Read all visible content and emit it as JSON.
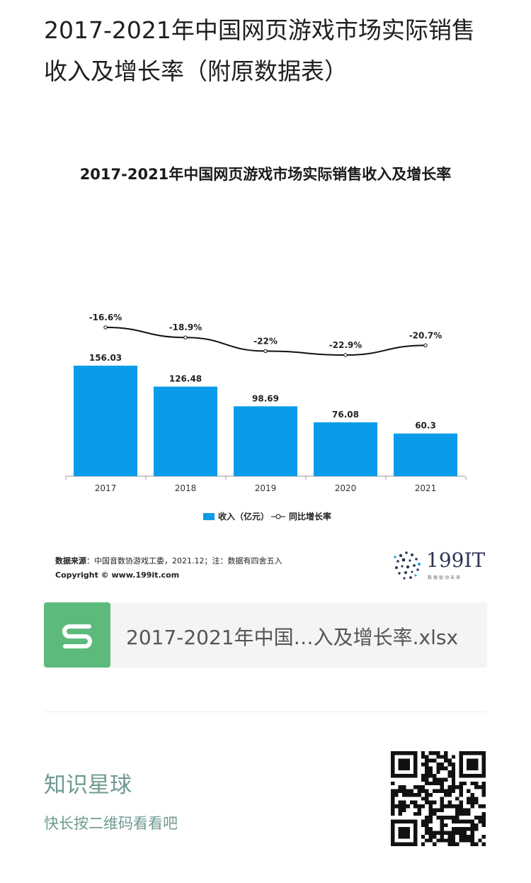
{
  "article": {
    "title": "2017-2021年中国网页游戏市场实际销售收入及增长率（附原数据表）"
  },
  "chart_data": {
    "type": "bar",
    "title": "2017-2021年中国网页游戏市场实际销售收入及增长率",
    "categories": [
      "2017",
      "2018",
      "2019",
      "2020",
      "2021"
    ],
    "series": [
      {
        "name": "收入（亿元）",
        "type": "bar",
        "values": [
          156.03,
          126.48,
          98.69,
          76.08,
          60.3
        ]
      },
      {
        "name": "同比增长率",
        "type": "line",
        "values": [
          -16.6,
          -18.9,
          -22,
          -22.9,
          -20.7
        ],
        "labels": [
          "-16.6%",
          "-18.9%",
          "-22%",
          "-22.9%",
          "-20.7%"
        ]
      }
    ],
    "bar_labels": [
      "156.03",
      "126.48",
      "98.69",
      "76.08",
      "60.3"
    ],
    "legend_position": "bottom-center",
    "grid": false,
    "colors": {
      "bar": "#0a9ce8",
      "line": "#111111"
    }
  },
  "source": {
    "label": "数据来源",
    "text": "：中国音数协游戏工委，2021.12；注：数据有四舍五入",
    "copyright": "Copyright ©  www.199it.com"
  },
  "brand": {
    "name": "199IT",
    "tagline": "数据驱动未来"
  },
  "file": {
    "name": "2017-2021年中国…入及增长率.xlsx",
    "icon": "spreadsheet-s-icon"
  },
  "promo": {
    "title": "知识星球",
    "subtitle": "快长按二维码看看吧",
    "icon": "qr-code-icon"
  }
}
